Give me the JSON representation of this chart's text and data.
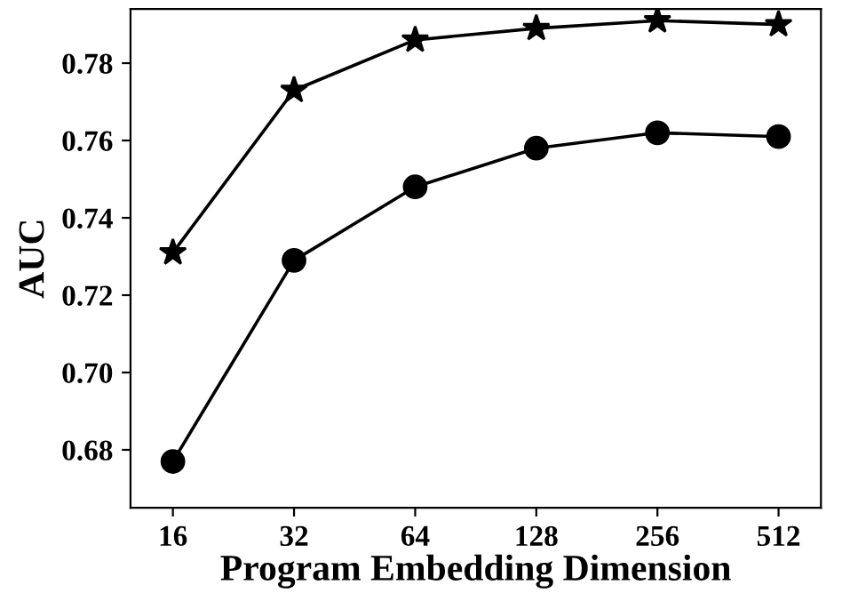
{
  "chart_data": {
    "type": "line",
    "xlabel": "Program Embedding Dimension",
    "ylabel": "AUC",
    "categories": [
      "16",
      "32",
      "64",
      "128",
      "256",
      "512"
    ],
    "series": [
      {
        "color": "#000000",
        "marker": "star",
        "values": [
          0.731,
          0.773,
          0.786,
          0.789,
          0.791,
          0.79
        ]
      },
      {
        "color": "#000000",
        "marker": "circle",
        "values": [
          0.677,
          0.729,
          0.748,
          0.758,
          0.762,
          0.761
        ]
      }
    ],
    "ylim": [
      0.665,
      0.794
    ],
    "yticks": [
      {
        "value": 0.68,
        "label": "0.68"
      },
      {
        "value": 0.7,
        "label": "0.70"
      },
      {
        "value": 0.72,
        "label": "0.72"
      },
      {
        "value": 0.74,
        "label": "0.74"
      },
      {
        "value": 0.76,
        "label": "0.76"
      },
      {
        "value": 0.78,
        "label": "0.78"
      }
    ],
    "grid": false,
    "line_style": "solid"
  }
}
